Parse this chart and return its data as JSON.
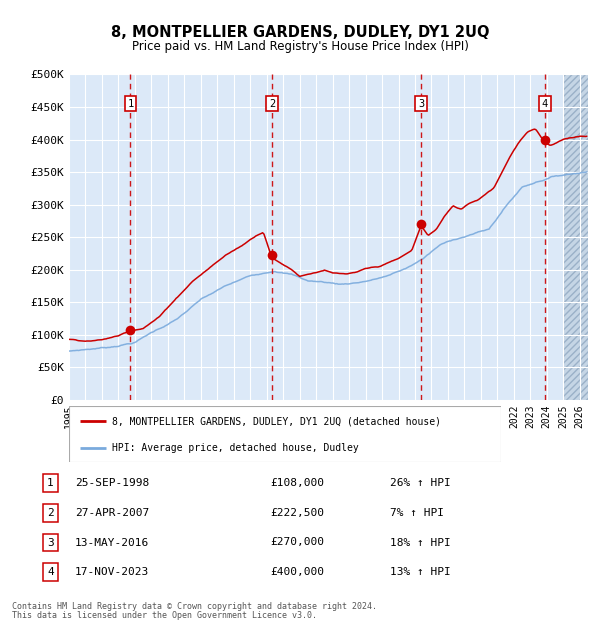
{
  "title": "8, MONTPELLIER GARDENS, DUDLEY, DY1 2UQ",
  "subtitle": "Price paid vs. HM Land Registry's House Price Index (HPI)",
  "footer1": "Contains HM Land Registry data © Crown copyright and database right 2024.",
  "footer2": "This data is licensed under the Open Government Licence v3.0.",
  "legend_entry1": "8, MONTPELLIER GARDENS, DUDLEY, DY1 2UQ (detached house)",
  "legend_entry2": "HPI: Average price, detached house, Dudley",
  "sales": [
    {
      "num": 1,
      "date_label": "25-SEP-1998",
      "price": 108000,
      "hpi_pct": "26% ↑ HPI",
      "x": 1998.73
    },
    {
      "num": 2,
      "date_label": "27-APR-2007",
      "price": 222500,
      "hpi_pct": "7% ↑ HPI",
      "x": 2007.32
    },
    {
      "num": 3,
      "date_label": "13-MAY-2016",
      "price": 270000,
      "hpi_pct": "18% ↑ HPI",
      "x": 2016.37
    },
    {
      "num": 4,
      "date_label": "17-NOV-2023",
      "price": 400000,
      "hpi_pct": "13% ↑ HPI",
      "x": 2023.88
    }
  ],
  "ylim": [
    0,
    500000
  ],
  "xlim": [
    1995.0,
    2026.5
  ],
  "yticks": [
    0,
    50000,
    100000,
    150000,
    200000,
    250000,
    300000,
    350000,
    400000,
    450000,
    500000
  ],
  "xticks": [
    1995,
    1996,
    1997,
    1998,
    1999,
    2000,
    2001,
    2002,
    2003,
    2004,
    2005,
    2006,
    2007,
    2008,
    2009,
    2010,
    2011,
    2012,
    2013,
    2014,
    2015,
    2016,
    2017,
    2018,
    2019,
    2020,
    2021,
    2022,
    2023,
    2024,
    2025,
    2026
  ],
  "bg_color": "#dce9f8",
  "hatch_color": "#c8d8ea",
  "grid_color": "#ffffff",
  "red_line_color": "#cc0000",
  "blue_line_color": "#7aaadd",
  "sale_marker_color": "#cc0000",
  "vline_color": "#cc0000",
  "box_edge_color": "#cc0000",
  "hatch_start": 2025.0
}
